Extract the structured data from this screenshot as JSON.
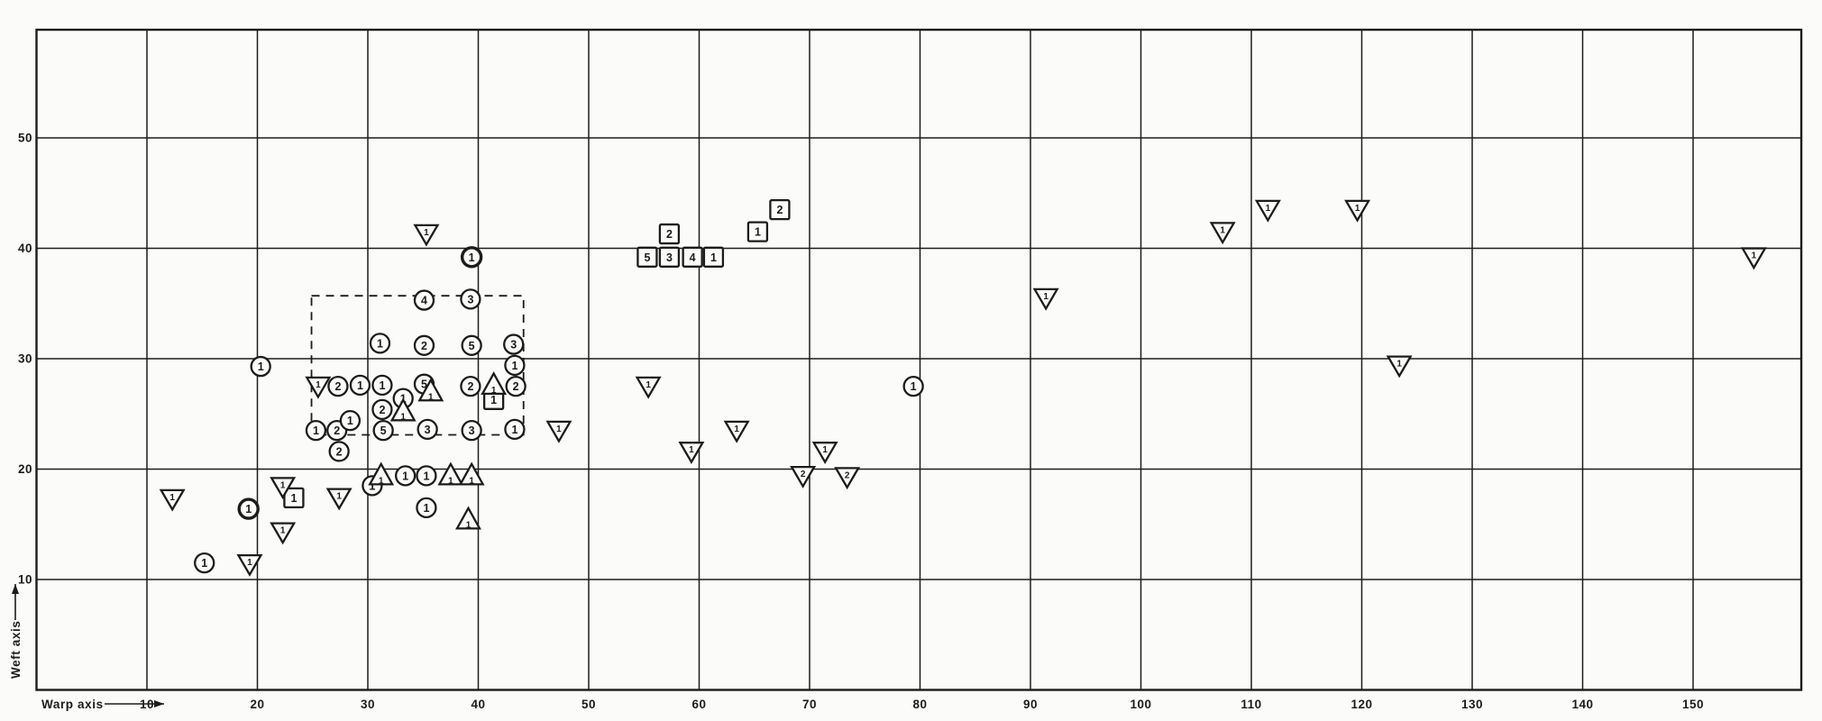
{
  "page": {
    "description": "Scanned scatter chart of thread counts on warp/weft axes",
    "paper_color": "#fbfbf9",
    "ink_color": "#1c1c1c"
  },
  "chart_data": {
    "type": "scatter",
    "title": "",
    "xlabel": "Warp axis",
    "ylabel": "Weft axis",
    "xlim": [
      0,
      159.8
    ],
    "ylim": [
      0,
      59.8
    ],
    "x_ticks": [
      10,
      20,
      30,
      40,
      50,
      60,
      70,
      80,
      90,
      100,
      110,
      120,
      130,
      140,
      150
    ],
    "y_ticks": [
      10,
      20,
      30,
      40,
      50
    ],
    "grid": true,
    "legend_position": "none",
    "dashed_region": {
      "x0": 24.9,
      "x1": 44.1,
      "y0": 23.1,
      "y1": 35.7
    },
    "series": [
      {
        "name": "circle-count",
        "marker": "circle-with-number",
        "points": [
          {
            "x": 15.2,
            "y": 11.5,
            "n": 1
          },
          {
            "x": 19.2,
            "y": 16.4,
            "n": 1,
            "bold": true
          },
          {
            "x": 20.3,
            "y": 29.3,
            "n": 1
          },
          {
            "x": 25.3,
            "y": 23.5,
            "n": 1
          },
          {
            "x": 27.2,
            "y": 23.5,
            "n": 2
          },
          {
            "x": 27.3,
            "y": 27.5,
            "n": 2
          },
          {
            "x": 27.4,
            "y": 21.6,
            "n": 2
          },
          {
            "x": 28.4,
            "y": 24.4,
            "n": 1
          },
          {
            "x": 29.3,
            "y": 27.6,
            "n": 1
          },
          {
            "x": 30.4,
            "y": 18.5,
            "n": 1
          },
          {
            "x": 31.1,
            "y": 31.4,
            "n": 1
          },
          {
            "x": 31.3,
            "y": 27.6,
            "n": 1
          },
          {
            "x": 31.3,
            "y": 25.4,
            "n": 2
          },
          {
            "x": 31.4,
            "y": 23.5,
            "n": 5
          },
          {
            "x": 33.2,
            "y": 26.4,
            "n": 1
          },
          {
            "x": 33.4,
            "y": 19.4,
            "n": 1
          },
          {
            "x": 35.1,
            "y": 35.3,
            "n": 4
          },
          {
            "x": 35.1,
            "y": 31.2,
            "n": 2
          },
          {
            "x": 35.1,
            "y": 27.7,
            "n": 5
          },
          {
            "x": 35.3,
            "y": 19.4,
            "n": 1
          },
          {
            "x": 35.3,
            "y": 16.5,
            "n": 1
          },
          {
            "x": 35.4,
            "y": 23.6,
            "n": 3
          },
          {
            "x": 39.3,
            "y": 35.4,
            "n": 3
          },
          {
            "x": 39.4,
            "y": 31.2,
            "n": 5
          },
          {
            "x": 39.3,
            "y": 27.5,
            "n": 2
          },
          {
            "x": 39.4,
            "y": 23.5,
            "n": 3
          },
          {
            "x": 39.4,
            "y": 39.2,
            "n": 1,
            "bold": true
          },
          {
            "x": 43.2,
            "y": 31.3,
            "n": 3
          },
          {
            "x": 43.3,
            "y": 29.4,
            "n": 1
          },
          {
            "x": 43.4,
            "y": 27.5,
            "n": 2
          },
          {
            "x": 43.3,
            "y": 23.6,
            "n": 1
          },
          {
            "x": 79.4,
            "y": 27.5,
            "n": 1
          }
        ]
      },
      {
        "name": "square-count",
        "marker": "square-with-number",
        "points": [
          {
            "x": 23.3,
            "y": 17.4,
            "n": 1
          },
          {
            "x": 41.4,
            "y": 26.3,
            "n": 1
          },
          {
            "x": 55.3,
            "y": 39.2,
            "n": 5
          },
          {
            "x": 57.3,
            "y": 39.2,
            "n": 3
          },
          {
            "x": 59.4,
            "y": 39.2,
            "n": 4
          },
          {
            "x": 61.3,
            "y": 39.2,
            "n": 1
          },
          {
            "x": 57.3,
            "y": 41.3,
            "n": 2
          },
          {
            "x": 65.3,
            "y": 41.5,
            "n": 1
          },
          {
            "x": 67.3,
            "y": 43.5,
            "n": 2
          }
        ]
      },
      {
        "name": "triangle-up-count",
        "marker": "triangle-up-with-number",
        "points": [
          {
            "x": 31.2,
            "y": 19.4,
            "n": 1
          },
          {
            "x": 33.2,
            "y": 25.2,
            "n": 1
          },
          {
            "x": 35.7,
            "y": 27.0,
            "n": 1
          },
          {
            "x": 37.5,
            "y": 19.4,
            "n": 1
          },
          {
            "x": 39.1,
            "y": 15.4,
            "n": 1
          },
          {
            "x": 39.4,
            "y": 19.4,
            "n": 1
          },
          {
            "x": 41.4,
            "y": 27.6,
            "n": 1
          }
        ]
      },
      {
        "name": "triangle-down-count",
        "marker": "triangle-down-with-number",
        "points": [
          {
            "x": 12.3,
            "y": 17.4,
            "n": 1
          },
          {
            "x": 19.3,
            "y": 11.5,
            "n": 1
          },
          {
            "x": 22.3,
            "y": 18.5,
            "n": 1
          },
          {
            "x": 22.3,
            "y": 14.4,
            "n": 1
          },
          {
            "x": 25.5,
            "y": 27.6,
            "n": 1
          },
          {
            "x": 27.4,
            "y": 17.5,
            "n": 1
          },
          {
            "x": 35.3,
            "y": 41.4,
            "n": 1
          },
          {
            "x": 47.3,
            "y": 23.6,
            "n": 1
          },
          {
            "x": 55.4,
            "y": 27.6,
            "n": 1
          },
          {
            "x": 59.3,
            "y": 21.7,
            "n": 1
          },
          {
            "x": 63.4,
            "y": 23.6,
            "n": 1
          },
          {
            "x": 69.4,
            "y": 19.5,
            "n": 2
          },
          {
            "x": 71.4,
            "y": 21.7,
            "n": 1
          },
          {
            "x": 73.4,
            "y": 19.4,
            "n": 2
          },
          {
            "x": 91.4,
            "y": 35.6,
            "n": 1
          },
          {
            "x": 107.4,
            "y": 41.6,
            "n": 1
          },
          {
            "x": 111.5,
            "y": 43.6,
            "n": 1
          },
          {
            "x": 119.6,
            "y": 43.6,
            "n": 1
          },
          {
            "x": 123.4,
            "y": 29.5,
            "n": 1
          },
          {
            "x": 155.5,
            "y": 39.3,
            "n": 1
          }
        ]
      }
    ]
  }
}
